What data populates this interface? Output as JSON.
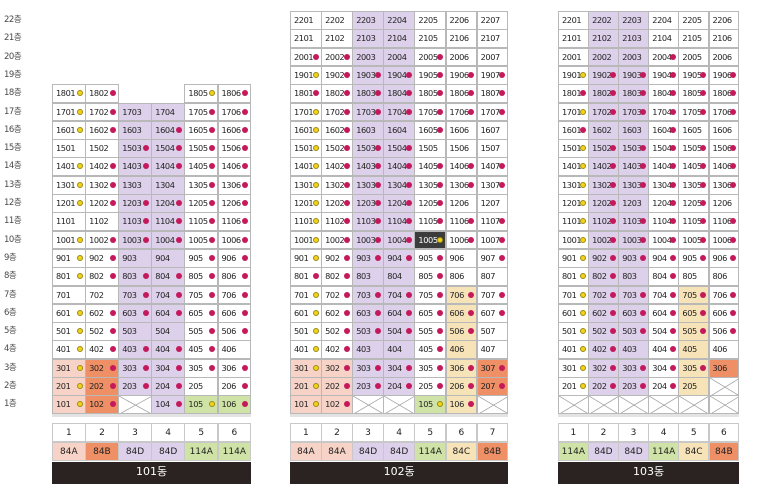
{
  "floor_labels": [
    "22층",
    "21층",
    "20층",
    "19층",
    "18층",
    "17층",
    "16층",
    "15층",
    "14층",
    "13층",
    "12층",
    "11층",
    "10층",
    "9층",
    "8층",
    "7층",
    "6층",
    "5층",
    "4층",
    "3층",
    "2층",
    "1층"
  ],
  "colors": {
    "84A": "#f6d3c6",
    "84B": "#ef8f66",
    "84C": "#f7e3b8",
    "84D": "#ddd0ea",
    "114A": "#cfe3a7",
    "highlight": "#3c3c3c",
    "dot_yellow": "#f2d21a",
    "dot_red": "#c41a5b"
  },
  "buildings": [
    {
      "name": "101동",
      "lines": [
        {
          "no": "1",
          "type": "84A"
        },
        {
          "no": "2",
          "type": "84B"
        },
        {
          "no": "3",
          "type": "84D"
        },
        {
          "no": "4",
          "type": "84D"
        },
        {
          "no": "5",
          "type": "114A"
        },
        {
          "no": "6",
          "type": "114A"
        }
      ],
      "units": [
        [
          "1801 y",
          "1802 r",
          "",
          "",
          "1805 y",
          "1806 r"
        ],
        [
          "1701 y",
          "1702 r",
          "1703",
          "1704",
          "1705 r",
          "1706 r"
        ],
        [
          "1601 y",
          "1602 r",
          "1603",
          "1604 r",
          "1605 r",
          "1606 r"
        ],
        [
          "1501",
          "1502",
          "1503 r",
          "1504 r",
          "1505 r",
          "1506 r"
        ],
        [
          "1401 y",
          "1402 r",
          "1403 r",
          "1404 r",
          "1405 r",
          "1406 r"
        ],
        [
          "1301 y",
          "1302 r",
          "1303",
          "1304",
          "1305 r",
          "1306 r"
        ],
        [
          "1201 y",
          "1202 r",
          "1203 r",
          "1204 r",
          "1205 r",
          "1206 r"
        ],
        [
          "1101",
          "1102",
          "1103 r",
          "1104 r",
          "1105 r",
          "1106 r"
        ],
        [
          "1001 y",
          "1002 r",
          "1003 r",
          "1004 r",
          "1005 r",
          "1006 r"
        ],
        [
          "901 y",
          "902 r",
          "903",
          "904",
          "905 r",
          "906 r"
        ],
        [
          "801 y",
          "802 r",
          "803 r",
          "804 r",
          "805 r",
          "806 r"
        ],
        [
          "701",
          "702",
          "703 r",
          "704 r",
          "705 r",
          "706 r"
        ],
        [
          "601 y",
          "602 r",
          "603 r",
          "604 r",
          "605 r",
          "606 r"
        ],
        [
          "501 y",
          "502 r",
          "503",
          "504",
          "505 r",
          "506 r"
        ],
        [
          "401 y",
          "402 r",
          "403 r",
          "404 r",
          "405 r",
          "406"
        ],
        [
          "301 y",
          "302 r",
          "303 r",
          "304 r",
          "305 r",
          "306 r"
        ],
        [
          "201 y",
          "202 r",
          "203 r",
          "204 r",
          "205",
          "206 r"
        ],
        [
          "101 y",
          "102 r",
          "X",
          "104 r",
          "105 y",
          "106 r"
        ]
      ]
    },
    {
      "name": "102동",
      "lines": [
        {
          "no": "1",
          "type": "84A"
        },
        {
          "no": "2",
          "type": "84A"
        },
        {
          "no": "3",
          "type": "84D"
        },
        {
          "no": "4",
          "type": "84D"
        },
        {
          "no": "5",
          "type": "114A"
        },
        {
          "no": "6",
          "type": "84C"
        },
        {
          "no": "7",
          "type": "84B"
        }
      ],
      "units": [
        [
          "2201",
          "2202",
          "2203",
          "2204",
          "2205",
          "2206",
          "2207"
        ],
        [
          "2101",
          "2102",
          "2103",
          "2104",
          "2105",
          "2106",
          "2107"
        ],
        [
          "2001 r",
          "2002 r",
          "2003",
          "2004",
          "2005 r",
          "2006",
          "2007"
        ],
        [
          "1901 y",
          "1902 r",
          "1903 r",
          "1904 r",
          "1905 r",
          "1906 r",
          "1907 r"
        ],
        [
          "1801 r",
          "1802 r",
          "1803 r",
          "1804 r",
          "1805 r",
          "1806 r",
          "1807 r"
        ],
        [
          "1701 y",
          "1702 r",
          "1703 r",
          "1704 r",
          "1705 r",
          "1706 r",
          "1707 r"
        ],
        [
          "1601 y",
          "1602 r",
          "1603",
          "1604",
          "1605 r",
          "1606",
          "1607"
        ],
        [
          "1501 y",
          "1502 r",
          "1503 r",
          "1504 r",
          "1505",
          "1506",
          "1507"
        ],
        [
          "1401 y",
          "1402 r",
          "1403 r",
          "1404 r",
          "1405 r",
          "1406 r",
          "1407 r"
        ],
        [
          "1301 y",
          "1302 r",
          "1303 r",
          "1304 r",
          "1305 r",
          "1306 r",
          "1307 r"
        ],
        [
          "1201 y",
          "1202 r",
          "1203 r",
          "1204 r",
          "1205 r",
          "1206",
          "1207"
        ],
        [
          "1101 y",
          "1102 r",
          "1103 r",
          "1104 r",
          "1105 r",
          "1106 r",
          "1107 r"
        ],
        [
          "1001 y",
          "1002 r",
          "1003 r",
          "1004 r",
          "1005 y",
          "1006 r",
          "1007 r"
        ],
        [
          "901 y",
          "902 r",
          "903 r",
          "904 r",
          "905 r",
          "906",
          "907 r"
        ],
        [
          "801 r",
          "802 r",
          "803",
          "804",
          "805 r",
          "806",
          "807"
        ],
        [
          "701 y",
          "702 r",
          "703 r",
          "704 r",
          "705 r",
          "706 r",
          "707 r"
        ],
        [
          "601 y",
          "602 r",
          "603 r",
          "604 r",
          "605 r",
          "606 r",
          "607 r"
        ],
        [
          "501 y",
          "502 r",
          "503 r",
          "504 r",
          "505 r",
          "506 r",
          "507"
        ],
        [
          "401 y",
          "402 r",
          "403",
          "404",
          "405 r",
          "406",
          "407"
        ],
        [
          "301 y",
          "302 r",
          "303 r",
          "304 r",
          "305 r",
          "306 r",
          "307 r"
        ],
        [
          "201 y",
          "202 r",
          "203 r",
          "204 r",
          "205 r",
          "206 r",
          "207 r"
        ],
        [
          "101 y",
          "102 r",
          "X",
          "X",
          "105 y",
          "106 r",
          "X"
        ]
      ]
    },
    {
      "name": "103동",
      "lines": [
        {
          "no": "1",
          "type": "114A"
        },
        {
          "no": "2",
          "type": "84D"
        },
        {
          "no": "3",
          "type": "84D"
        },
        {
          "no": "4",
          "type": "114A"
        },
        {
          "no": "5",
          "type": "84C"
        },
        {
          "no": "6",
          "type": "84B"
        }
      ],
      "units": [
        [
          "2201",
          "2202",
          "2203",
          "2204",
          "2205",
          "2206"
        ],
        [
          "2101",
          "2102",
          "2103",
          "2104",
          "2105",
          "2106"
        ],
        [
          "2001",
          "2002",
          "2003",
          "2004 r",
          "2005",
          "2006"
        ],
        [
          "1901 y",
          "1902 r",
          "1903 r",
          "1904 r",
          "1905 r",
          "1906 r"
        ],
        [
          "1801 r",
          "1802 r",
          "1803 r",
          "1804 r",
          "1805 r",
          "1806 r"
        ],
        [
          "1701 y",
          "1702 r",
          "1703 r",
          "1704 r",
          "1705 r",
          "1706 r"
        ],
        [
          "1601 r",
          "1602",
          "1603",
          "1604 r",
          "1605",
          "1606"
        ],
        [
          "1501 y",
          "1502 r",
          "1503 r",
          "1504 r",
          "1505 r",
          "1506 r"
        ],
        [
          "1401 y",
          "1402 r",
          "1403 r",
          "1404 r",
          "1405 r",
          "1406 r"
        ],
        [
          "1301 y",
          "1302 r",
          "1303 r",
          "1304 r",
          "1305 r",
          "1306 r"
        ],
        [
          "1201 y",
          "1202 r",
          "1203",
          "1204 r",
          "1205 r",
          "1206"
        ],
        [
          "1101 y",
          "1102 r",
          "1103 r",
          "1104 r",
          "1105 r",
          "1106 r"
        ],
        [
          "1001 y",
          "1002 r",
          "1003 r",
          "1004 r",
          "1005 r",
          "1006 r"
        ],
        [
          "901 y",
          "902 r",
          "903 r",
          "904 r",
          "905 r",
          "906 r"
        ],
        [
          "801 y",
          "802 r",
          "803",
          "804 r",
          "805",
          "806"
        ],
        [
          "701 y",
          "702 r",
          "703 r",
          "704 r",
          "705 r",
          "706 r"
        ],
        [
          "601 y",
          "602 r",
          "603 r",
          "604 r",
          "605 r",
          "606 r"
        ],
        [
          "501 y",
          "502 r",
          "503 r",
          "504 r",
          "505 r",
          "506 r"
        ],
        [
          "401 y",
          "402 r",
          "403",
          "404 r",
          "405",
          "406"
        ],
        [
          "301 y",
          "302 r",
          "303 r",
          "304 r",
          "305 r",
          "306"
        ],
        [
          "201 y",
          "202 r",
          "203 r",
          "204 r",
          "205",
          "X"
        ],
        [
          "X",
          "X",
          "X",
          "X",
          "X",
          "X"
        ]
      ]
    }
  ]
}
